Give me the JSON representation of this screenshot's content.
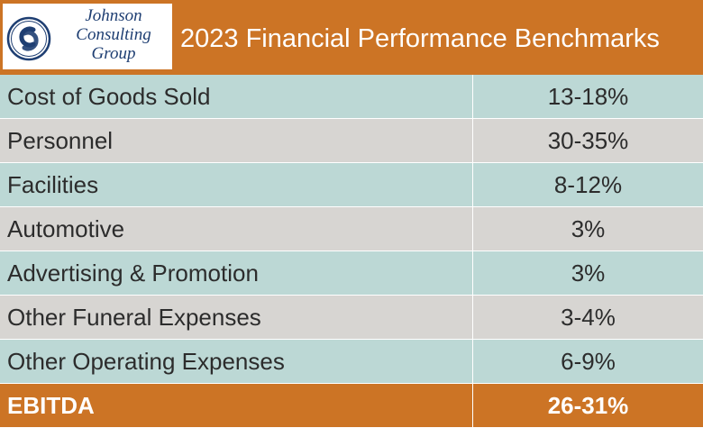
{
  "logo": {
    "line1": "Johnson",
    "line2": "Consulting",
    "line3": "Group",
    "icon": "cg-monogram-icon"
  },
  "header": {
    "title": "2023 Financial Performance Benchmarks"
  },
  "colors": {
    "header_bg": "#cc7425",
    "row_teal": "#bcd8d5",
    "row_gray": "#d7d5d2",
    "logo_navy": "#1e3e72"
  },
  "rows": [
    {
      "label": "Cost of Goods Sold",
      "value": "13-18%"
    },
    {
      "label": "Personnel",
      "value": "30-35%"
    },
    {
      "label": "Facilities",
      "value": "8-12%"
    },
    {
      "label": "Automotive",
      "value": "3%"
    },
    {
      "label": "Advertising & Promotion",
      "value": "3%"
    },
    {
      "label": "Other Funeral Expenses",
      "value": "3-4%"
    },
    {
      "label": "Other Operating Expenses",
      "value": "6-9%"
    }
  ],
  "total": {
    "label": "EBITDA",
    "value": "26-31%"
  }
}
